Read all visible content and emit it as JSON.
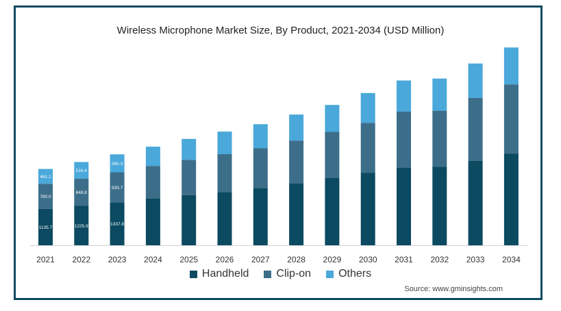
{
  "chart_data": {
    "type": "bar",
    "stacked": true,
    "title": "Wireless Microphone Market Size, By Product, 2021-2034 (USD Million)",
    "categories": [
      "2021",
      "2022",
      "2023",
      "2024",
      "2025",
      "2026",
      "2027",
      "2028",
      "2029",
      "2030",
      "2031",
      "2032",
      "2033",
      "2034"
    ],
    "series": [
      {
        "name": "Handheld",
        "color": "#0b4a60",
        "values": [
          1135.7,
          1225.9,
          1337.8,
          1460,
          1560,
          1660,
          1780,
          1920,
          2090,
          2250,
          2420,
          2450,
          2640,
          2850
        ]
      },
      {
        "name": "Clip-on",
        "color": "#3c6e8a",
        "values": [
          780.0,
          848.8,
          933.7,
          1010,
          1100,
          1180,
          1240,
          1340,
          1440,
          1560,
          1740,
          1740,
          1950,
          2160
        ]
      },
      {
        "name": "Others",
        "color": "#4aa8da",
        "values": [
          461.1,
          516.4,
          560.3,
          600,
          650,
          700,
          750,
          810,
          840,
          930,
          970,
          1000,
          1070,
          1150
        ]
      }
    ],
    "data_labels": {
      "2021": [
        "1135.7",
        "780.0",
        "461.1"
      ],
      "2022": [
        "1225.9",
        "848.8",
        "516.4"
      ],
      "2023": [
        "1337.8",
        "933.7",
        "560.3"
      ]
    },
    "ylim": [
      0,
      6400
    ],
    "grid": false,
    "legend": "bottom"
  },
  "source": "Source: www.gminsights.com"
}
